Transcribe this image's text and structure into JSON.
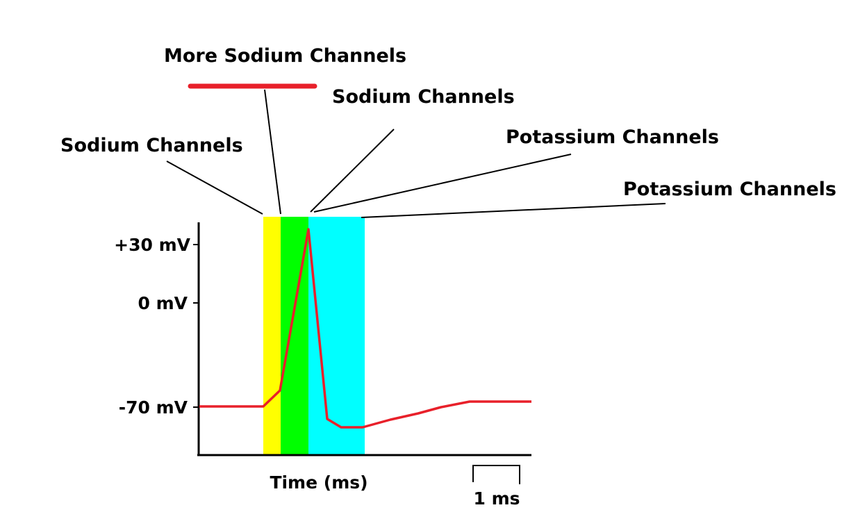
{
  "colors": {
    "background": "#ffffff",
    "trace": "#e8202a",
    "axis": "#000000",
    "leader": "#000000",
    "phase_yellow": "#ffff00",
    "phase_green": "#00ff00",
    "phase_cyan": "#00ffff"
  },
  "labels": {
    "more_sodium_channels": "More Sodium Channels",
    "sodium_channels_left": "Sodium Channels",
    "sodium_channels_right": "Sodium Channels",
    "potassium_channels_upper": "Potassium Channels",
    "potassium_channels_lower": "Potassium Channels"
  },
  "axes": {
    "x_label": "Time (ms)",
    "y_ticks": [
      "+30 mV",
      "0 mV",
      "-70 mV"
    ],
    "scale_bar": "1 ms"
  }
}
